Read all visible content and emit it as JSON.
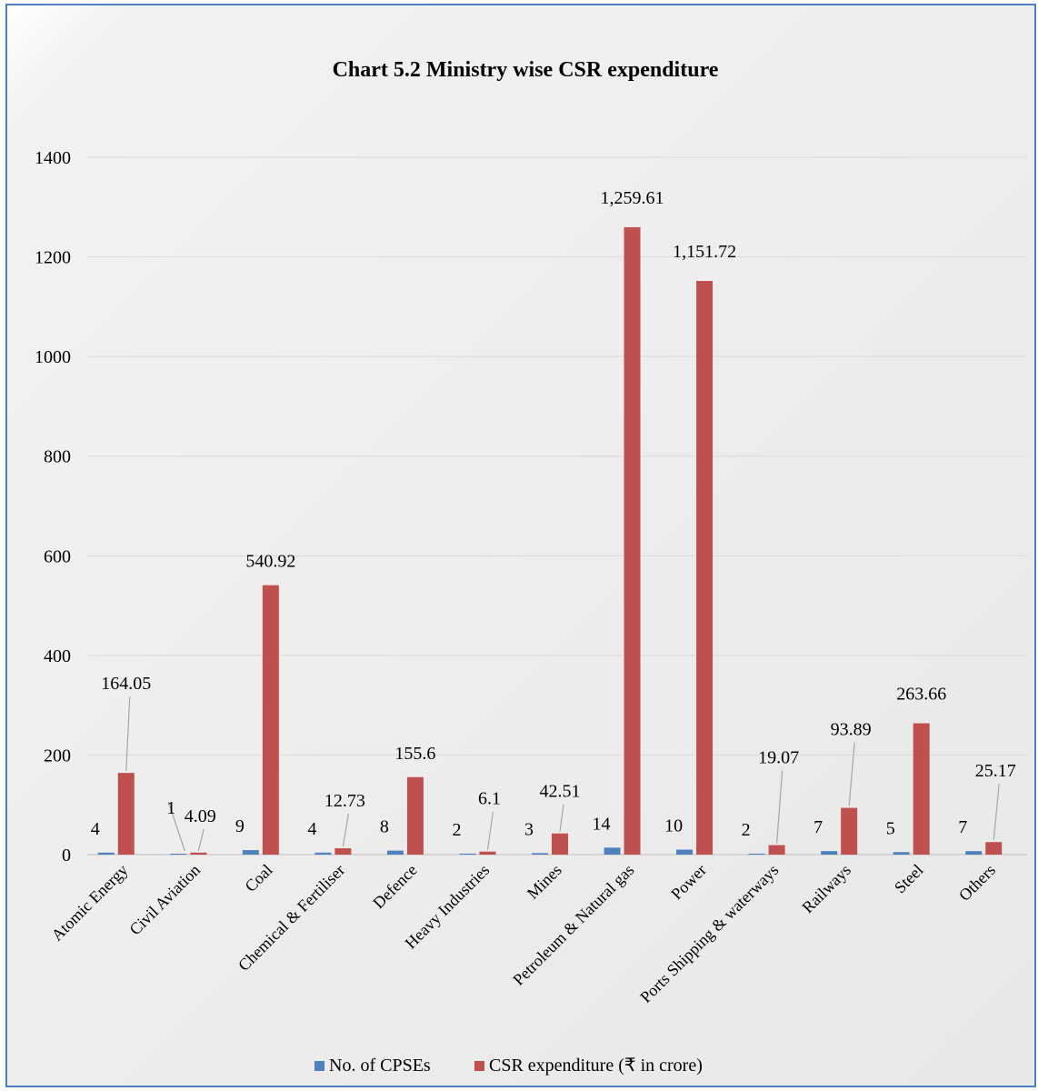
{
  "chart_data": {
    "type": "bar",
    "title": "Chart 5.2 Ministry wise CSR expenditure",
    "xlabel": "",
    "ylabel": "",
    "ylim": [
      0,
      1400
    ],
    "yticks": [
      0,
      200,
      400,
      600,
      800,
      1000,
      1200,
      1400
    ],
    "grid": true,
    "legend_position": "bottom",
    "categories": [
      "Atomic Energy",
      "Civil Aviation",
      "Coal",
      "Chemical & Fertiliser",
      "Defence",
      "Heavy Industries",
      "Mines",
      "Petroleum & Natural gas",
      "Power",
      "Ports Shipping & waterways",
      "Railways",
      "Steel",
      "Others"
    ],
    "series": [
      {
        "name": "No. of CPSEs",
        "color": "#4f81bd",
        "values": [
          4,
          1,
          9,
          4,
          8,
          2,
          3,
          14,
          10,
          2,
          7,
          5,
          7
        ],
        "labels": [
          "4",
          "1",
          "9",
          "4",
          "8",
          "2",
          "3",
          "14",
          "10",
          "2",
          "7",
          "5",
          "7"
        ]
      },
      {
        "name": "CSR expenditure (₹ in crore)",
        "color": "#c0504d",
        "values": [
          164.05,
          4.09,
          540.92,
          12.73,
          155.6,
          6.1,
          42.51,
          1259.61,
          1151.72,
          19.07,
          93.89,
          263.66,
          25.17
        ],
        "labels": [
          "164.05",
          "4.09",
          "540.92",
          "12.73",
          "155.6",
          "6.1",
          "42.51",
          "1,259.61",
          "1,151.72",
          "19.07",
          "93.89",
          "263.66",
          "25.17"
        ]
      }
    ]
  }
}
